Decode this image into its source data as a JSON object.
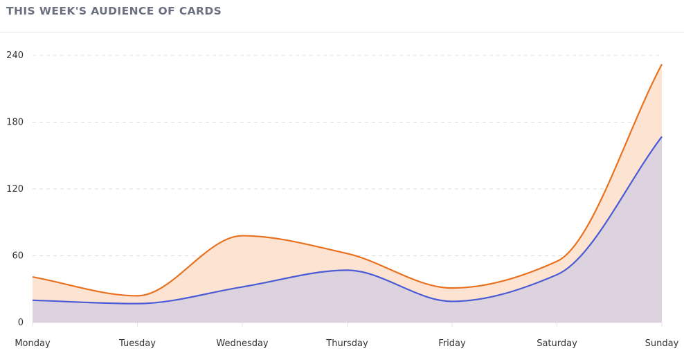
{
  "header": {
    "title": "THIS WEEK'S AUDIENCE OF CARDS"
  },
  "chart_data": {
    "type": "area",
    "title": "THIS WEEK'S AUDIENCE OF CARDS",
    "xlabel": "",
    "ylabel": "",
    "categories": [
      "Monday",
      "Tuesday",
      "Wednesday",
      "Thursday",
      "Friday",
      "Saturday",
      "Sunday"
    ],
    "ylim": [
      0,
      240
    ],
    "yticks": [
      0,
      60,
      120,
      180,
      240
    ],
    "ytick_labels": [
      "0",
      "60",
      "120",
      "180",
      "240"
    ],
    "grid": true,
    "legend": "none",
    "smooth": true,
    "series": [
      {
        "name": "series-orange",
        "color": "#e8711f",
        "fill": "#fde4d2",
        "values": [
          41,
          24,
          78,
          62,
          31,
          55,
          232
        ]
      },
      {
        "name": "series-blue",
        "color": "#4a5bd4",
        "fill": "#dcd3df",
        "values": [
          20,
          17,
          32,
          47,
          19,
          43,
          167
        ]
      }
    ]
  }
}
